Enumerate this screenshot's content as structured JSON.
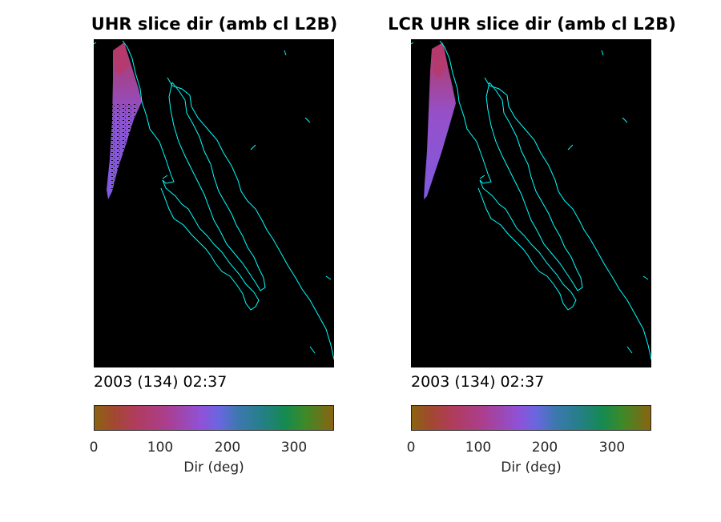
{
  "panels": [
    {
      "title": "UHR slice dir (amb cl L2B)",
      "timestamp": "2003 (134) 02:37",
      "colorbar": {
        "label": "Dir (deg)",
        "ticks": [
          "0",
          "100",
          "200",
          "300"
        ]
      }
    },
    {
      "title": "LCR UHR slice dir (amb cl L2B)",
      "timestamp": "2003 (134) 02:37",
      "colorbar": {
        "label": "Dir (deg)",
        "ticks": [
          "0",
          "100",
          "200",
          "300"
        ]
      }
    }
  ],
  "chart_data": {
    "type": "heatmap",
    "colorbar_range": [
      0,
      360
    ],
    "colormap_stops": [
      "#8a6410",
      "#a24830",
      "#b03c5c",
      "#ab3e8e",
      "#8e52d8",
      "#6a66e0",
      "#3d78b0",
      "#257f88",
      "#158a50",
      "#3c8a28",
      "#8a6410"
    ],
    "coastline_color": "#00ffff",
    "background_color": "#000000"
  }
}
